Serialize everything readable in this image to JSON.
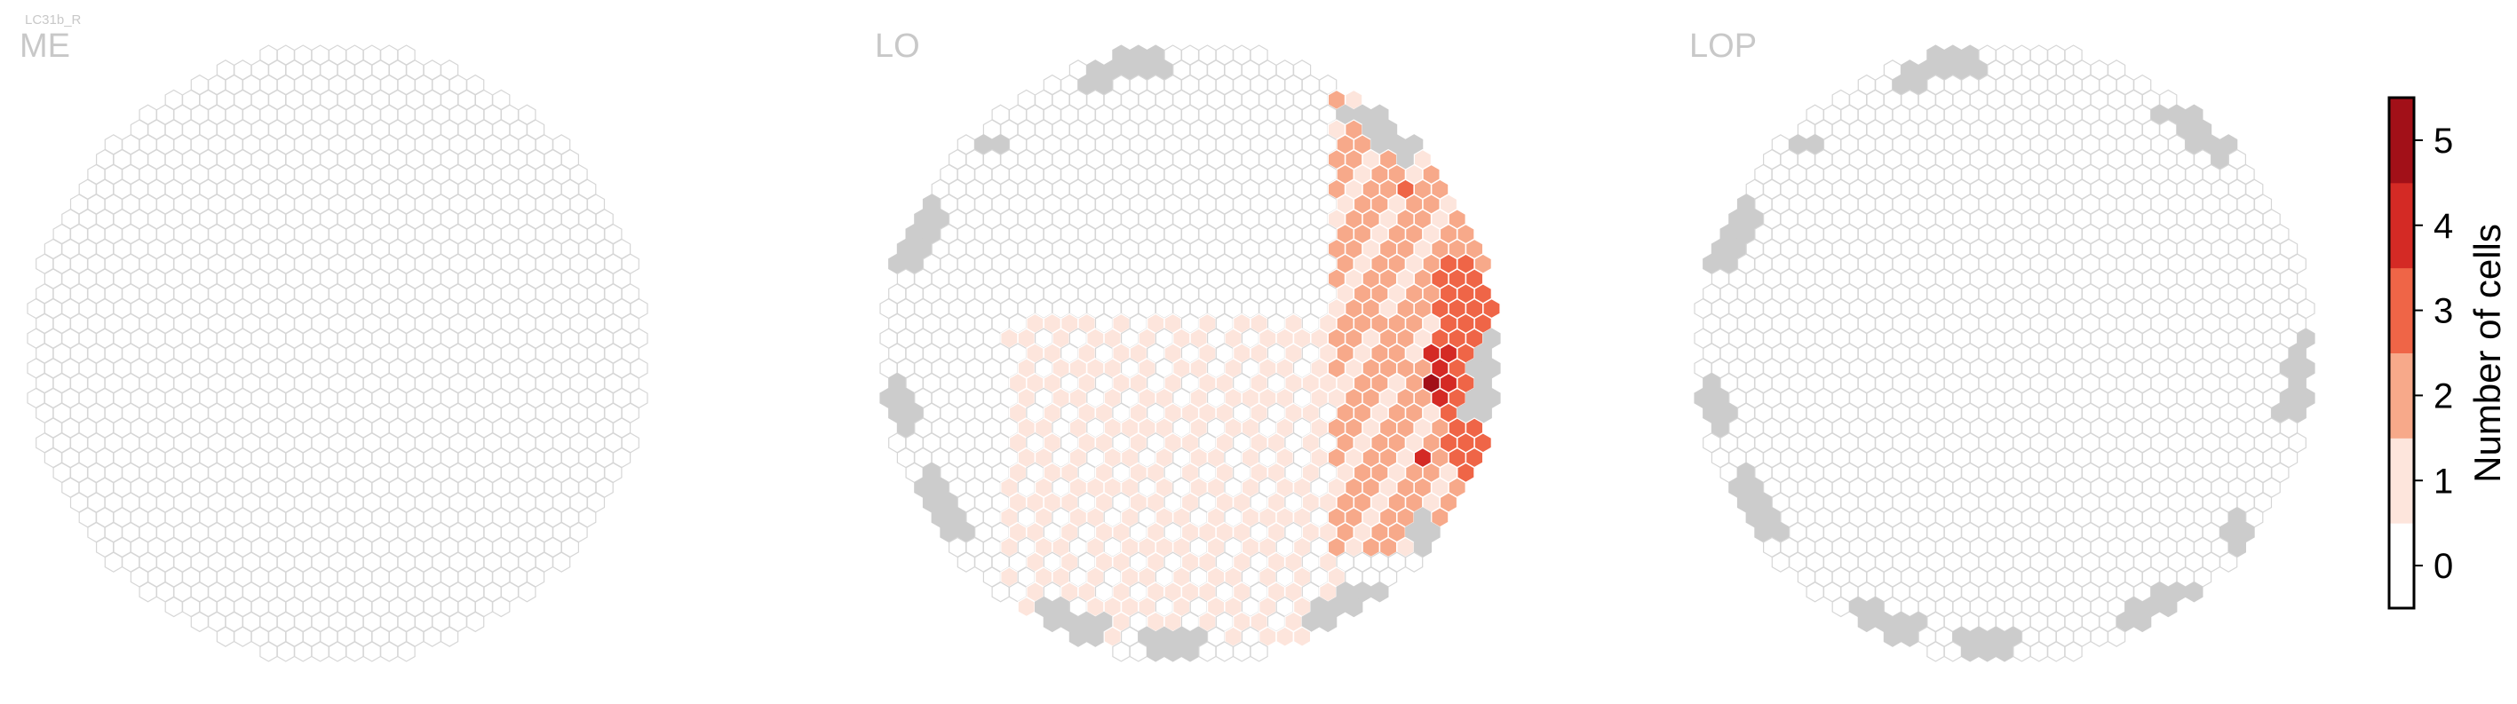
{
  "figure_label": "LC31b_R",
  "colors": {
    "outline": "#d6d6d6",
    "boundary": "#cccccc",
    "scale": [
      "#ffffff",
      "#fde5dc",
      "#f7a98a",
      "#ef6547",
      "#d42a25",
      "#a21018"
    ]
  },
  "chart_data": {
    "type": "heatmap",
    "description_units": "hexagonal columns; value = number of cells per column",
    "panels": [
      {
        "title": "ME",
        "active_columns": [],
        "has_boundary_columns": false
      },
      {
        "title": "LO",
        "active_columns": [
          {
            "q": 0.55,
            "r": 0.6,
            "value": 1
          },
          {
            "q": 0.48,
            "r": 0.75,
            "value": 1
          },
          {
            "q": 0.35,
            "r": 0.82,
            "value": 1
          },
          {
            "q": 0.12,
            "r": 0.58,
            "value": 1
          },
          {
            "q": 0.62,
            "r": 0.3,
            "value": 2
          },
          {
            "q": 0.72,
            "r": 0.05,
            "value": 2
          },
          {
            "q": 0.78,
            "r": -0.25,
            "value": 3
          },
          {
            "q": 0.82,
            "r": -0.05,
            "value": 3
          },
          {
            "q": 0.8,
            "r": 0.1,
            "value": 5
          },
          {
            "q": 0.74,
            "r": 0.35,
            "value": 4
          },
          {
            "q": 0.3,
            "r": 0.5,
            "value": 1
          },
          {
            "q": -0.2,
            "r": 0.45,
            "value": 1
          },
          {
            "q": 0.68,
            "r": -0.55,
            "value": 3
          },
          {
            "q": 0.55,
            "r": 0.12,
            "value": 2
          },
          {
            "q": 0.86,
            "r": 0.25,
            "value": 3
          },
          {
            "q": 0.6,
            "r": -0.1,
            "value": 2
          }
        ],
        "has_boundary_columns": true
      },
      {
        "title": "LOP",
        "active_columns": [],
        "has_boundary_columns": true
      }
    ],
    "colorbar": {
      "label": "Number of cells",
      "ticks": [
        "0",
        "1",
        "2",
        "3",
        "4",
        "5"
      ],
      "range": [
        0,
        5
      ]
    }
  }
}
